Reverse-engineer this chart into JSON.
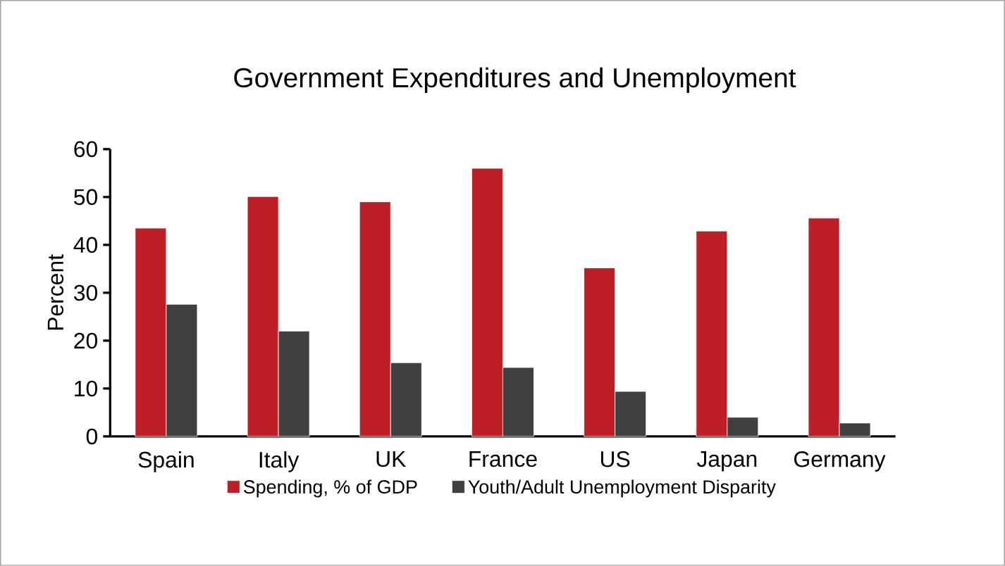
{
  "chart_data": {
    "type": "bar",
    "title": "Government Expenditures and Unemployment",
    "ylabel": "Percent",
    "categories": [
      "Spain",
      "Italy",
      "UK",
      "France",
      "US",
      "Japan",
      "Germany"
    ],
    "series": [
      {
        "name": "Spending, % of GDP",
        "color": "#be1e26",
        "values": [
          43.5,
          50.1,
          49.0,
          56.0,
          35.2,
          42.9,
          45.6
        ]
      },
      {
        "name": "Youth/Adult Unemployment Disparity",
        "color": "#404040",
        "values": [
          27.6,
          22.0,
          15.4,
          14.4,
          9.4,
          4.0,
          2.8
        ]
      }
    ],
    "ylim": [
      0,
      60
    ],
    "yticks": [
      0,
      10,
      20,
      30,
      40,
      50,
      60
    ],
    "legend": "bottom"
  }
}
